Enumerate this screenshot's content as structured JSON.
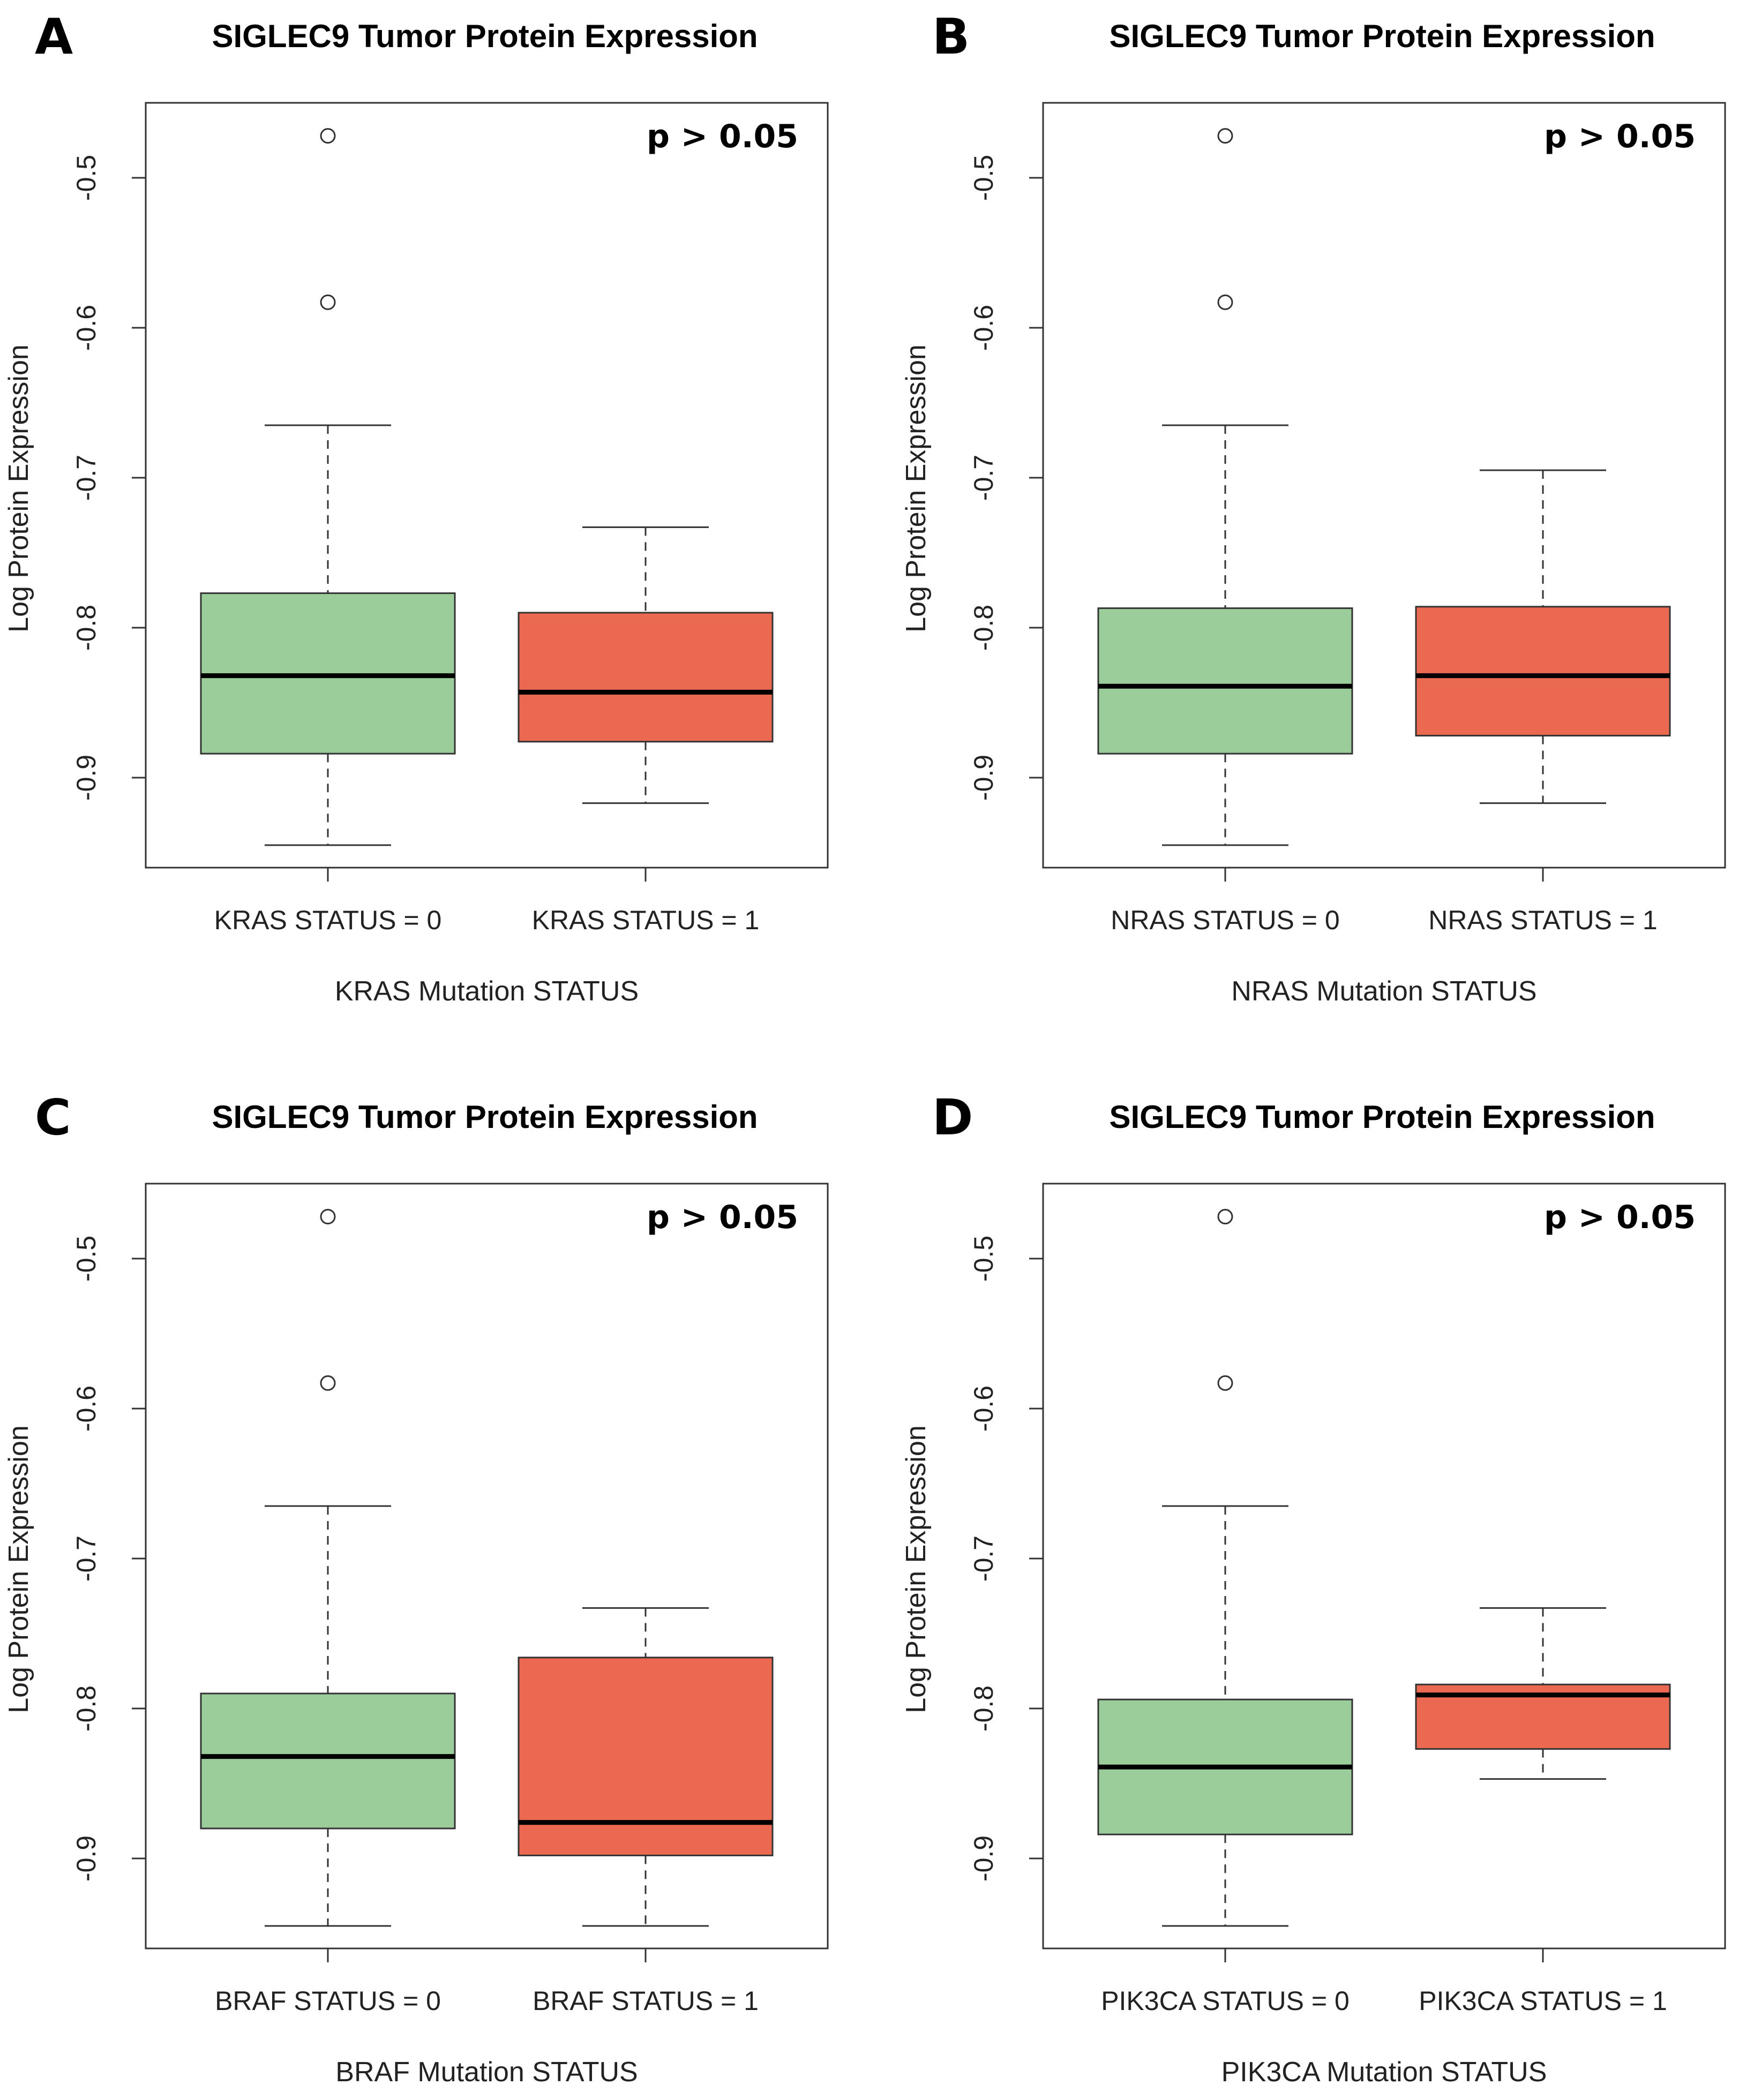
{
  "figure": {
    "colors": {
      "group0": "#9bcd9b",
      "group1": "#ec6951",
      "outline": "#333333",
      "median": "#000000"
    }
  },
  "chart_data": [
    {
      "type": "boxplot",
      "panel": "A",
      "title": "SIGLEC9 Tumor Protein Expression",
      "annotation": "p > 0.05",
      "xlabel": "KRAS Mutation STATUS",
      "ylabel": "Log Protein Expression",
      "ylim": [
        -0.96,
        -0.45
      ],
      "yticks": [
        -0.5,
        -0.6,
        -0.7,
        -0.8,
        -0.9
      ],
      "ytick_labels": [
        "-0.5",
        "-0.6",
        "-0.7",
        "-0.8",
        "-0.9"
      ],
      "categories": [
        "KRAS STATUS = 0",
        "KRAS STATUS = 1"
      ],
      "boxes": [
        {
          "whisker_low": -0.945,
          "q1": -0.884,
          "median": -0.832,
          "q3": -0.777,
          "whisker_high": -0.665,
          "outliers": [
            -0.472,
            -0.583
          ]
        },
        {
          "whisker_low": -0.917,
          "q1": -0.876,
          "median": -0.843,
          "q3": -0.79,
          "whisker_high": -0.733,
          "outliers": []
        }
      ]
    },
    {
      "type": "boxplot",
      "panel": "B",
      "title": "SIGLEC9 Tumor Protein Expression",
      "annotation": "p > 0.05",
      "xlabel": "NRAS Mutation STATUS",
      "ylabel": "Log Protein Expression",
      "ylim": [
        -0.96,
        -0.45
      ],
      "yticks": [
        -0.5,
        -0.6,
        -0.7,
        -0.8,
        -0.9
      ],
      "ytick_labels": [
        "-0.5",
        "-0.6",
        "-0.7",
        "-0.8",
        "-0.9"
      ],
      "categories": [
        "NRAS STATUS = 0",
        "NRAS STATUS = 1"
      ],
      "boxes": [
        {
          "whisker_low": -0.945,
          "q1": -0.884,
          "median": -0.839,
          "q3": -0.787,
          "whisker_high": -0.665,
          "outliers": [
            -0.472,
            -0.583
          ]
        },
        {
          "whisker_low": -0.917,
          "q1": -0.872,
          "median": -0.832,
          "q3": -0.786,
          "whisker_high": -0.695,
          "outliers": []
        }
      ]
    },
    {
      "type": "boxplot",
      "panel": "C",
      "title": "SIGLEC9 Tumor Protein Expression",
      "annotation": "p > 0.05",
      "xlabel": "BRAF Mutation STATUS",
      "ylabel": "Log Protein Expression",
      "ylim": [
        -0.96,
        -0.45
      ],
      "yticks": [
        -0.5,
        -0.6,
        -0.7,
        -0.8,
        -0.9
      ],
      "ytick_labels": [
        "-0.5",
        "-0.6",
        "-0.7",
        "-0.8",
        "-0.9"
      ],
      "categories": [
        "BRAF STATUS = 0",
        "BRAF STATUS = 1"
      ],
      "boxes": [
        {
          "whisker_low": -0.945,
          "q1": -0.88,
          "median": -0.832,
          "q3": -0.79,
          "whisker_high": -0.665,
          "outliers": [
            -0.472,
            -0.583
          ]
        },
        {
          "whisker_low": -0.945,
          "q1": -0.898,
          "median": -0.876,
          "q3": -0.766,
          "whisker_high": -0.733,
          "outliers": []
        }
      ]
    },
    {
      "type": "boxplot",
      "panel": "D",
      "title": "SIGLEC9 Tumor Protein Expression",
      "annotation": "p > 0.05",
      "xlabel": "PIK3CA Mutation STATUS",
      "ylabel": "Log Protein Expression",
      "ylim": [
        -0.96,
        -0.45
      ],
      "yticks": [
        -0.5,
        -0.6,
        -0.7,
        -0.8,
        -0.9
      ],
      "ytick_labels": [
        "-0.5",
        "-0.6",
        "-0.7",
        "-0.8",
        "-0.9"
      ],
      "categories": [
        "PIK3CA STATUS = 0",
        "PIK3CA STATUS = 1"
      ],
      "boxes": [
        {
          "whisker_low": -0.945,
          "q1": -0.884,
          "median": -0.839,
          "q3": -0.794,
          "whisker_high": -0.665,
          "outliers": [
            -0.472,
            -0.583
          ]
        },
        {
          "whisker_low": -0.847,
          "q1": -0.827,
          "median": -0.791,
          "q3": -0.784,
          "whisker_high": -0.733,
          "outliers": []
        }
      ]
    }
  ]
}
